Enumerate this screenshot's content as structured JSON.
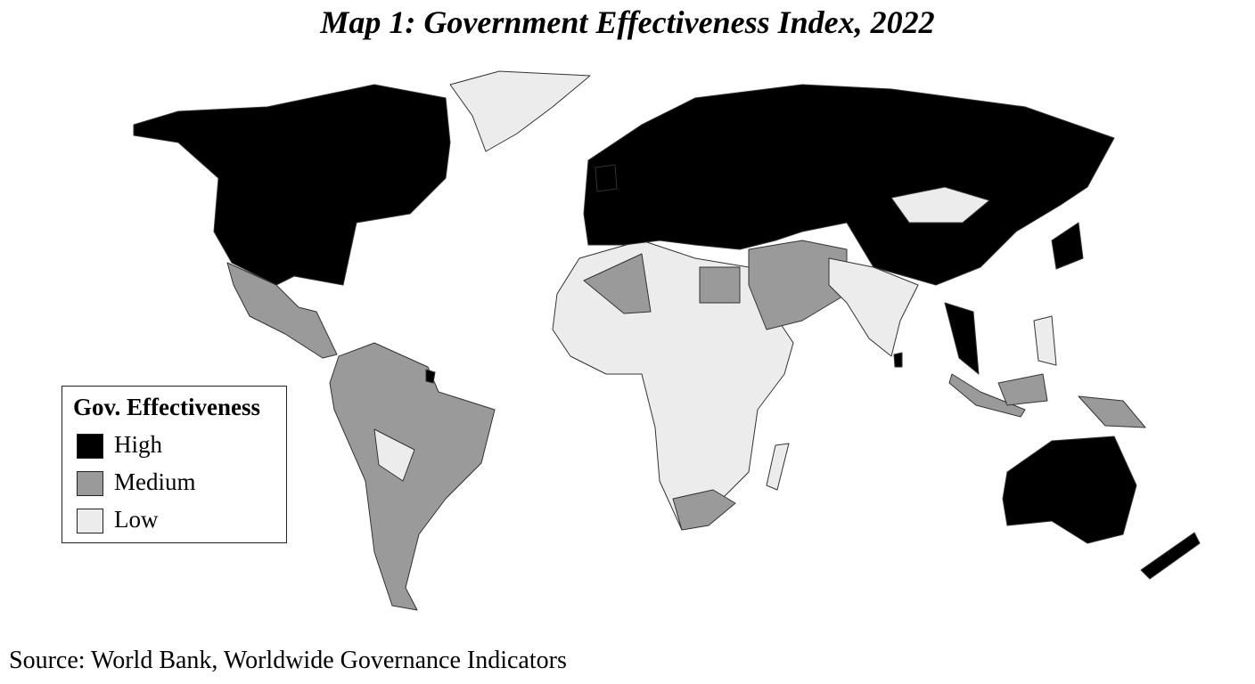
{
  "title": "Map 1: Government Effectiveness Index, 2022",
  "legend": {
    "title": "Gov. Effectiveness",
    "items": [
      {
        "label": "High",
        "color": "#000000"
      },
      {
        "label": "Medium",
        "color": "#9a9a9a"
      },
      {
        "label": "Low",
        "color": "#ececec"
      }
    ]
  },
  "source": "Source: World Bank, Worldwide Governance Indicators"
}
